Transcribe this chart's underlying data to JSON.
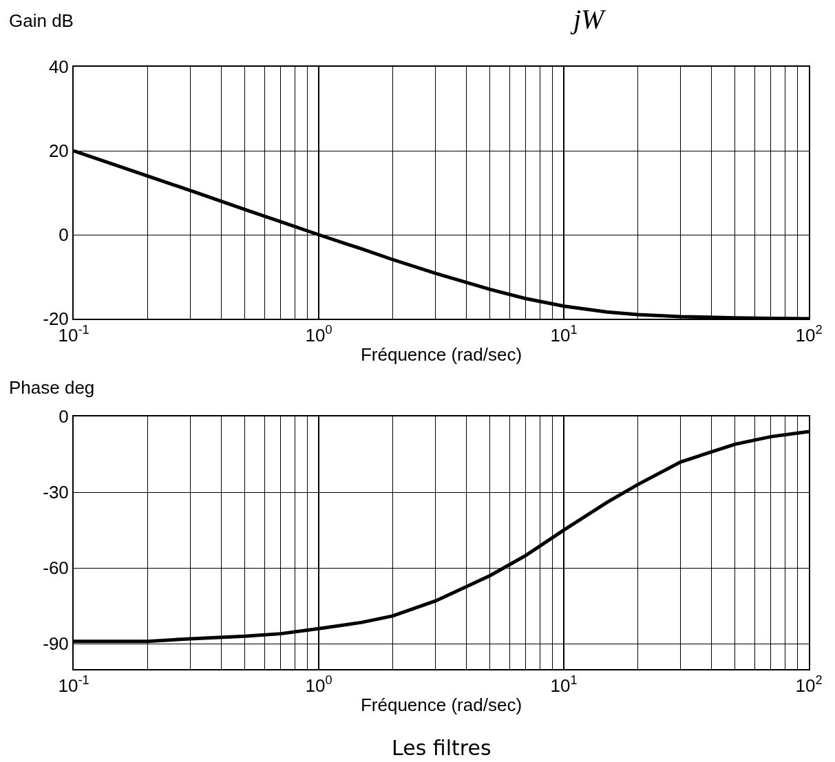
{
  "chart_data": [
    {
      "type": "line",
      "ylabel": "Gain dB",
      "xlabel": "Fréquence (rad/sec)",
      "annotations": [
        "jW"
      ],
      "x": [
        0.1,
        0.2,
        0.3,
        0.5,
        0.7,
        1,
        1.5,
        2,
        3,
        5,
        7,
        10,
        15,
        20,
        30,
        50,
        70,
        100
      ],
      "series": [
        {
          "color": "#000000",
          "values": [
            20,
            14,
            10.5,
            6,
            3.1,
            0,
            -3.4,
            -5.9,
            -9.2,
            -13,
            -15.2,
            -17,
            -18.4,
            -19,
            -19.5,
            -19.8,
            -19.9,
            -20
          ]
        }
      ],
      "log": "x",
      "xlim": [
        0.1,
        100
      ],
      "xticks": [
        {
          "value": 0.1,
          "label": "10$^{-1}$"
        },
        {
          "value": 1,
          "label": "10$^{0}$"
        },
        {
          "value": 10,
          "label": "10$^{1}$"
        },
        {
          "value": 100,
          "label": "10$^{2}$"
        }
      ],
      "ylim": [
        -20,
        40
      ],
      "yticks": [
        -20,
        0,
        20,
        40
      ],
      "grid": true,
      "marker": "none",
      "line_style": "solid"
    },
    {
      "type": "line",
      "ylabel": "Phase deg",
      "xlabel": "Fréquence (rad/sec)",
      "annotations": [
        "Les filtres"
      ],
      "x": [
        0.1,
        0.2,
        0.3,
        0.5,
        0.7,
        1,
        1.5,
        2,
        3,
        5,
        7,
        10,
        15,
        20,
        30,
        50,
        70,
        100
      ],
      "series": [
        {
          "color": "#000000",
          "values": [
            -89,
            -89,
            -88,
            -87,
            -86,
            -84,
            -81.5,
            -79,
            -73,
            -63,
            -55,
            -45,
            -34,
            -27,
            -18,
            -11,
            -8,
            -6
          ]
        }
      ],
      "log": "x",
      "xlim": [
        0.1,
        100
      ],
      "xticks": [
        {
          "value": 0.1,
          "label": "10$^{-1}$"
        },
        {
          "value": 1,
          "label": "10$^{0}$"
        },
        {
          "value": 10,
          "label": "10$^{1}$"
        },
        {
          "value": 100,
          "label": "10$^{2}$"
        }
      ],
      "ylim": [
        -100,
        0
      ],
      "yticks": [
        -90,
        -60,
        -30,
        0
      ],
      "grid": true,
      "marker": "none",
      "line_style": "solid"
    }
  ]
}
